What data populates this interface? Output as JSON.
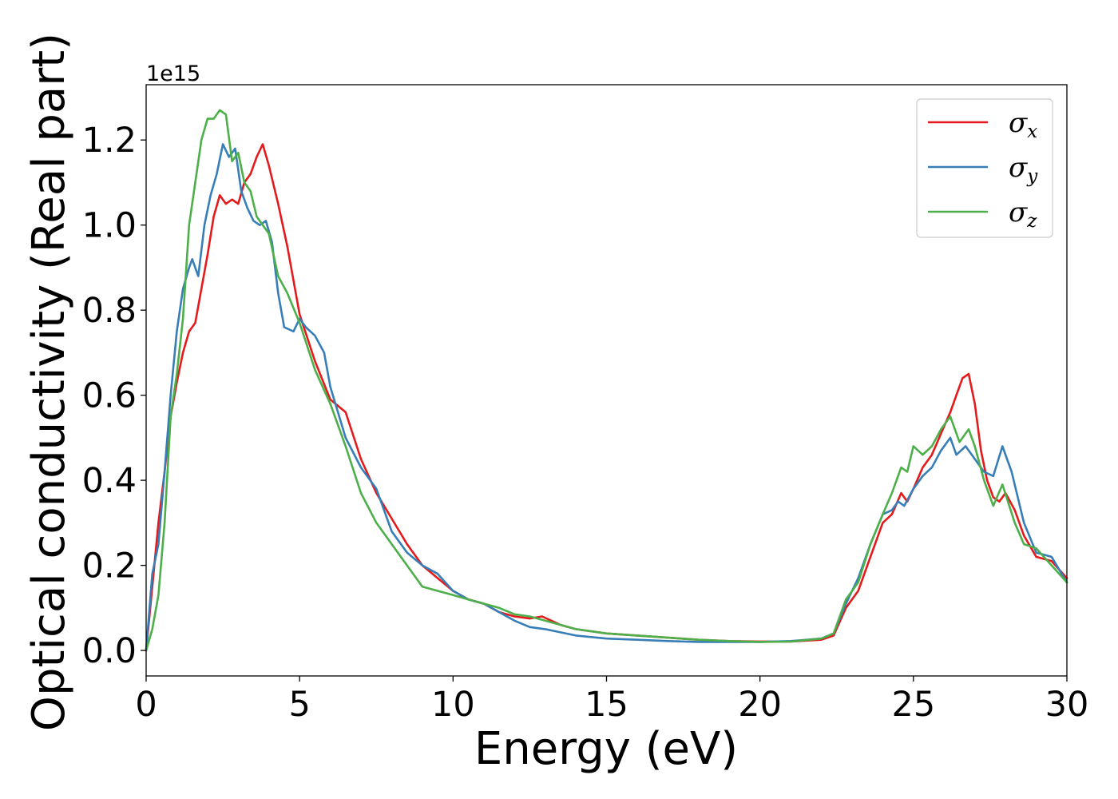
{
  "chart_data": {
    "type": "line",
    "title": "",
    "xlabel": "Energy (eV)",
    "ylabel": "Optical conductivity (Real part)",
    "y_offset_text": "1e15",
    "xlim": [
      0,
      30
    ],
    "ylim": [
      -0.06,
      1.33
    ],
    "y_scale_factor": 1000000000000000.0,
    "xticks": [
      0,
      5,
      10,
      15,
      20,
      25,
      30
    ],
    "xtick_labels": [
      "0",
      "5",
      "10",
      "15",
      "20",
      "25",
      "30"
    ],
    "yticks": [
      0.0,
      0.2,
      0.4,
      0.6,
      0.8,
      1.0,
      1.2
    ],
    "ytick_labels": [
      "0.0",
      "0.2",
      "0.4",
      "0.6",
      "0.8",
      "1.0",
      "1.2"
    ],
    "grid": false,
    "legend_placement": "top-right",
    "series": [
      {
        "name": "σx",
        "symbol": "σ",
        "subscript": "x",
        "color": "#e41a1c",
        "x": [
          0,
          0.2,
          0.4,
          0.6,
          0.8,
          1.0,
          1.2,
          1.4,
          1.6,
          1.8,
          2.0,
          2.2,
          2.4,
          2.6,
          2.8,
          3.0,
          3.2,
          3.4,
          3.6,
          3.8,
          4.0,
          4.3,
          4.6,
          5.0,
          5.5,
          6.0,
          6.5,
          7.0,
          7.5,
          8.0,
          8.5,
          9.0,
          9.5,
          10.0,
          10.5,
          11.0,
          11.5,
          12.0,
          12.5,
          12.9,
          13.5,
          14.0,
          15.0,
          16.0,
          17.0,
          18.0,
          19.0,
          20.0,
          21.0,
          22.0,
          22.4,
          22.8,
          23.2,
          23.6,
          24.0,
          24.3,
          24.6,
          24.8,
          25.0,
          25.3,
          25.6,
          25.9,
          26.2,
          26.4,
          26.6,
          26.8,
          27.0,
          27.2,
          27.4,
          27.6,
          27.8,
          28.0,
          28.3,
          28.6,
          29.0,
          29.5,
          30.0
        ],
        "y": [
          0.0,
          0.15,
          0.3,
          0.42,
          0.55,
          0.63,
          0.7,
          0.75,
          0.77,
          0.85,
          0.93,
          1.02,
          1.07,
          1.05,
          1.06,
          1.05,
          1.1,
          1.12,
          1.16,
          1.19,
          1.14,
          1.05,
          0.95,
          0.79,
          0.68,
          0.59,
          0.56,
          0.45,
          0.37,
          0.31,
          0.25,
          0.2,
          0.17,
          0.14,
          0.12,
          0.11,
          0.09,
          0.08,
          0.075,
          0.08,
          0.06,
          0.05,
          0.04,
          0.035,
          0.03,
          0.025,
          0.022,
          0.021,
          0.021,
          0.025,
          0.035,
          0.1,
          0.14,
          0.22,
          0.3,
          0.32,
          0.37,
          0.35,
          0.38,
          0.43,
          0.46,
          0.51,
          0.56,
          0.6,
          0.64,
          0.65,
          0.58,
          0.47,
          0.4,
          0.36,
          0.35,
          0.37,
          0.33,
          0.27,
          0.22,
          0.21,
          0.17
        ]
      },
      {
        "name": "σy",
        "symbol": "σ",
        "subscript": "y",
        "color": "#377eb8",
        "x": [
          0,
          0.2,
          0.4,
          0.6,
          0.8,
          1.0,
          1.2,
          1.4,
          1.5,
          1.7,
          1.9,
          2.1,
          2.3,
          2.5,
          2.7,
          2.9,
          3.1,
          3.3,
          3.5,
          3.7,
          3.9,
          4.1,
          4.3,
          4.5,
          4.8,
          5.0,
          5.2,
          5.5,
          5.8,
          6.0,
          6.5,
          7.0,
          7.5,
          8.0,
          8.5,
          9.0,
          9.5,
          10.0,
          10.5,
          11.0,
          11.5,
          12.0,
          12.5,
          13.0,
          14.0,
          15.0,
          16.0,
          17.0,
          18.0,
          19.0,
          20.0,
          21.0,
          22.0,
          22.4,
          22.8,
          23.2,
          23.6,
          24.0,
          24.3,
          24.5,
          24.7,
          25.0,
          25.3,
          25.6,
          25.9,
          26.2,
          26.4,
          26.7,
          27.0,
          27.3,
          27.6,
          27.9,
          28.2,
          28.6,
          29.0,
          29.5,
          30.0
        ],
        "y": [
          0.0,
          0.18,
          0.25,
          0.42,
          0.6,
          0.75,
          0.85,
          0.9,
          0.92,
          0.88,
          1.0,
          1.07,
          1.12,
          1.19,
          1.16,
          1.18,
          1.08,
          1.04,
          1.01,
          1.0,
          1.01,
          0.96,
          0.84,
          0.76,
          0.75,
          0.78,
          0.76,
          0.74,
          0.7,
          0.62,
          0.5,
          0.43,
          0.38,
          0.28,
          0.23,
          0.2,
          0.18,
          0.14,
          0.12,
          0.11,
          0.09,
          0.07,
          0.055,
          0.05,
          0.035,
          0.028,
          0.025,
          0.022,
          0.02,
          0.02,
          0.02,
          0.022,
          0.028,
          0.04,
          0.11,
          0.17,
          0.25,
          0.32,
          0.33,
          0.35,
          0.34,
          0.38,
          0.41,
          0.43,
          0.47,
          0.5,
          0.46,
          0.48,
          0.45,
          0.42,
          0.41,
          0.48,
          0.42,
          0.3,
          0.23,
          0.22,
          0.16
        ]
      },
      {
        "name": "σz",
        "symbol": "σ",
        "subscript": "z",
        "color": "#4daf4a",
        "x": [
          0,
          0.2,
          0.4,
          0.6,
          0.8,
          1.0,
          1.2,
          1.4,
          1.6,
          1.8,
          2.0,
          2.2,
          2.4,
          2.6,
          2.8,
          3.0,
          3.2,
          3.4,
          3.6,
          3.8,
          4.0,
          4.3,
          4.6,
          5.0,
          5.5,
          6.0,
          6.5,
          7.0,
          7.5,
          8.0,
          8.5,
          9.0,
          9.5,
          10.0,
          10.5,
          11.0,
          11.5,
          12.0,
          12.5,
          13.0,
          14.0,
          15.0,
          16.0,
          17.0,
          18.0,
          19.0,
          20.0,
          21.0,
          22.0,
          22.4,
          22.8,
          23.2,
          23.6,
          24.0,
          24.3,
          24.6,
          24.8,
          25.0,
          25.3,
          25.6,
          25.9,
          26.2,
          26.5,
          26.8,
          27.0,
          27.3,
          27.6,
          27.9,
          28.3,
          28.6,
          29.0,
          29.5,
          30.0
        ],
        "y": [
          0.0,
          0.05,
          0.13,
          0.3,
          0.55,
          0.65,
          0.78,
          1.0,
          1.1,
          1.2,
          1.25,
          1.25,
          1.27,
          1.26,
          1.15,
          1.17,
          1.1,
          1.08,
          1.02,
          1.0,
          0.98,
          0.88,
          0.84,
          0.77,
          0.66,
          0.58,
          0.48,
          0.37,
          0.3,
          0.25,
          0.2,
          0.15,
          0.14,
          0.13,
          0.12,
          0.11,
          0.1,
          0.085,
          0.08,
          0.07,
          0.05,
          0.04,
          0.035,
          0.03,
          0.025,
          0.022,
          0.02,
          0.021,
          0.028,
          0.04,
          0.12,
          0.16,
          0.25,
          0.32,
          0.37,
          0.43,
          0.42,
          0.48,
          0.46,
          0.48,
          0.52,
          0.55,
          0.49,
          0.52,
          0.48,
          0.4,
          0.34,
          0.39,
          0.3,
          0.25,
          0.24,
          0.2,
          0.16
        ]
      }
    ]
  }
}
